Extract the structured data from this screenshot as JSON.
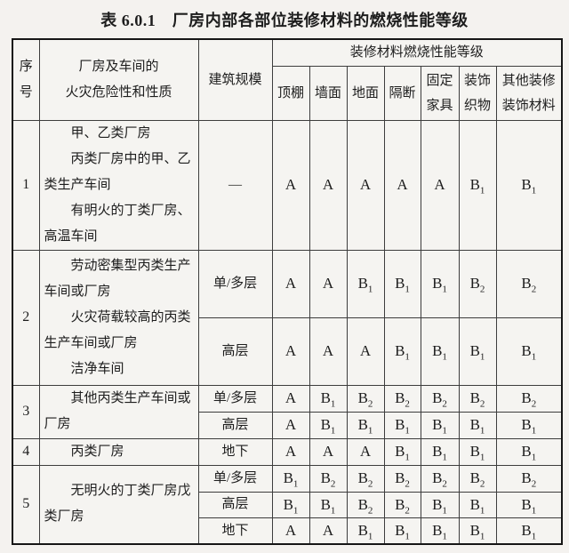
{
  "page": {
    "title": "表 6.0.1　厂房内部各部位装修材料的燃烧性能等级"
  },
  "colors": {
    "background": "#f4f2ef",
    "text": "#1d1d1d",
    "inner_border": "#3d3d3d",
    "outer_border": "#161616"
  },
  "table": {
    "header": {
      "serial": "序号",
      "hazard": "厂房及车间的\n火灾危险性和性质",
      "scale": "建筑规模",
      "ratings_group": "装修材料燃烧性能等级",
      "rating_columns": [
        "顶棚",
        "墙面",
        "地面",
        "隔断",
        "固定家具",
        "装饰织物",
        "其他装修装饰材料"
      ]
    },
    "rows": [
      {
        "no": "1",
        "description": [
          "甲、乙类厂房",
          "丙类厂房中的甲、乙类生产车间",
          "有明火的丁类厂房、高温车间"
        ],
        "subrows": [
          {
            "scale": "—",
            "ratings": [
              "A",
              "A",
              "A",
              "A",
              "A",
              "B1",
              "B1"
            ]
          }
        ]
      },
      {
        "no": "2",
        "description": [
          "劳动密集型丙类生产车间或厂房",
          "火灾荷载较高的丙类生产车间或厂房",
          "洁净车间"
        ],
        "subrows": [
          {
            "scale": "单/多层",
            "ratings": [
              "A",
              "A",
              "B1",
              "B1",
              "B1",
              "B2",
              "B2"
            ]
          },
          {
            "scale": "高层",
            "ratings": [
              "A",
              "A",
              "A",
              "B1",
              "B1",
              "B1",
              "B1"
            ]
          }
        ]
      },
      {
        "no": "3",
        "description": [
          "其他丙类生产车间或厂房"
        ],
        "subrows": [
          {
            "scale": "单/多层",
            "ratings": [
              "A",
              "B1",
              "B2",
              "B2",
              "B2",
              "B2",
              "B2"
            ]
          },
          {
            "scale": "高层",
            "ratings": [
              "A",
              "B1",
              "B1",
              "B1",
              "B1",
              "B1",
              "B1"
            ]
          }
        ]
      },
      {
        "no": "4",
        "description": [
          "丙类厂房"
        ],
        "subrows": [
          {
            "scale": "地下",
            "ratings": [
              "A",
              "A",
              "A",
              "B1",
              "B1",
              "B1",
              "B1"
            ]
          }
        ]
      },
      {
        "no": "5",
        "description": [
          "无明火的丁类厂房戊类厂房"
        ],
        "subrows": [
          {
            "scale": "单/多层",
            "ratings": [
              "B1",
              "B2",
              "B2",
              "B2",
              "B2",
              "B2",
              "B2"
            ]
          },
          {
            "scale": "高层",
            "ratings": [
              "B1",
              "B1",
              "B2",
              "B2",
              "B1",
              "B1",
              "B1"
            ]
          },
          {
            "scale": "地下",
            "ratings": [
              "A",
              "A",
              "B1",
              "B1",
              "B1",
              "B1",
              "B1"
            ]
          }
        ]
      }
    ]
  }
}
